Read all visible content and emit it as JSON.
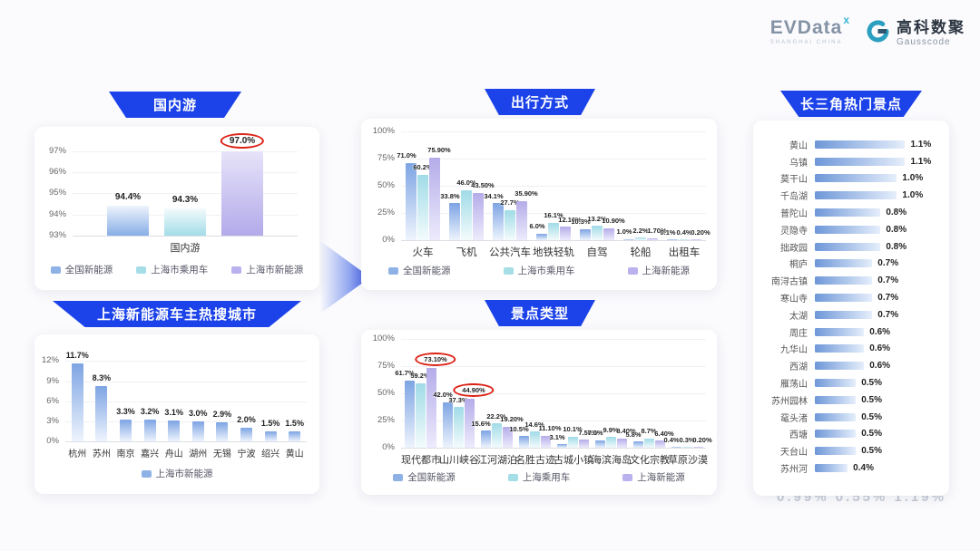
{
  "logo": {
    "evdata_text": "EVData",
    "evdata_sup": "x",
    "evdata_sub": "SHANGHAI CHINA",
    "gausscode_cn": "高科数聚",
    "gausscode_en": "Gausscode"
  },
  "watermark": "0.99%  0.55%  1.19%",
  "colors": {
    "banner_blue": "#1c42e9",
    "highlight_circle_red": "#dd2317",
    "series_legend": [
      "#8fb2e6",
      "#a6dee8",
      "#bab2ee"
    ],
    "hbar_blue": "#6e97d8"
  },
  "chart_data": [
    {
      "id": "domestic_travel",
      "type": "bar",
      "title": "国内游",
      "categories": [
        "国内游"
      ],
      "series": [
        {
          "name": "全国新能源",
          "values": [
            94.4
          ],
          "labels": [
            "94.4%"
          ]
        },
        {
          "name": "上海市乘用车",
          "values": [
            94.3
          ],
          "labels": [
            "94.3%"
          ]
        },
        {
          "name": "上海市新能源",
          "values": [
            97.0
          ],
          "labels": [
            "97.0%"
          ]
        }
      ],
      "yticks": [
        93,
        94,
        95,
        96,
        97
      ],
      "ylim": [
        93,
        97.45
      ],
      "highlight": [
        {
          "series": 2,
          "index": 0
        }
      ],
      "legend_position": "bottom",
      "grid": true
    },
    {
      "id": "hot_search_cities",
      "type": "bar",
      "title": "上海新能源车主热搜城市",
      "categories": [
        "杭州",
        "苏州",
        "南京",
        "嘉兴",
        "舟山",
        "湖州",
        "无锡",
        "宁波",
        "绍兴",
        "黄山"
      ],
      "series": [
        {
          "name": "上海市新能源",
          "values": [
            11.7,
            8.3,
            3.3,
            3.2,
            3.1,
            3.0,
            2.9,
            2.0,
            1.5,
            1.5
          ],
          "labels": [
            "11.7%",
            "8.3%",
            "3.3%",
            "3.2%",
            "3.1%",
            "3.0%",
            "2.9%",
            "2.0%",
            "1.5%",
            "1.5%"
          ]
        }
      ],
      "yticks": [
        0,
        3,
        6,
        9,
        12
      ],
      "ylim": [
        0,
        13
      ],
      "legend_position": "bottom",
      "grid": true
    },
    {
      "id": "travel_modes",
      "type": "bar",
      "title": "出行方式",
      "categories": [
        "火车",
        "飞机",
        "公共汽车",
        "地铁轻轨",
        "自驾",
        "轮船",
        "出租车"
      ],
      "series": [
        {
          "name": "全国新能源",
          "values": [
            71.0,
            33.8,
            34.1,
            6.0,
            10.3,
            1.0,
            0.1
          ],
          "labels": [
            "71.0%",
            "33.8%",
            "34.1%",
            "6.0%",
            "10.3%",
            "1.0%",
            "0.1%"
          ]
        },
        {
          "name": "上海市乘用车",
          "values": [
            60.2,
            46.0,
            27.7,
            16.1,
            13.2,
            2.2,
            0.4
          ],
          "labels": [
            "60.2%",
            "46.0%",
            "27.7%",
            "16.1%",
            "13.2%",
            "2.2%",
            "0.4%"
          ]
        },
        {
          "name": "上海新能源",
          "values": [
            75.9,
            43.5,
            35.9,
            12.1,
            10.9,
            1.7,
            0.2
          ],
          "labels": [
            "75.90%",
            "43.50%",
            "35.90%",
            "12.10%",
            "10.90%",
            "1.70%",
            "0.20%"
          ]
        }
      ],
      "yticks": [
        0,
        25,
        50,
        75,
        100
      ],
      "ylim": [
        0,
        100
      ],
      "legend_position": "bottom",
      "grid": true
    },
    {
      "id": "attraction_types",
      "type": "bar",
      "title": "景点类型",
      "categories": [
        "现代都市",
        "山川峡谷",
        "江河湖泊",
        "名胜古迹",
        "古城小镇",
        "海滨海岛",
        "文化宗教",
        "草原沙漠"
      ],
      "series": [
        {
          "name": "全国新能源",
          "values": [
            61.7,
            42.0,
            15.6,
            10.5,
            3.1,
            7.0,
            5.8,
            0.4
          ],
          "labels": [
            "61.7%",
            "42.0%",
            "15.6%",
            "10.5%",
            "3.1%",
            "7.0%",
            "5.8%",
            "0.4%"
          ]
        },
        {
          "name": "上海乘用车",
          "values": [
            59.2,
            37.3,
            22.2,
            14.6,
            10.1,
            9.9,
            8.7,
            0.3
          ],
          "labels": [
            "59.2%",
            "37.3%",
            "22.2%",
            "14.6%",
            "10.1%",
            "9.9%",
            "8.7%",
            "0.3%"
          ]
        },
        {
          "name": "上海新能源",
          "values": [
            73.1,
            44.9,
            19.2,
            11.1,
            7.5,
            8.4,
            6.4,
            0.2
          ],
          "labels": [
            "73.10%",
            "44.90%",
            "19.20%",
            "11.10%",
            "7.50%",
            "8.40%",
            "6.40%",
            "0.20%"
          ]
        }
      ],
      "yticks": [
        0,
        25,
        50,
        75,
        100
      ],
      "ylim": [
        0,
        100
      ],
      "highlight": [
        {
          "series": 2,
          "index": 0
        },
        {
          "series": 2,
          "index": 1
        }
      ],
      "legend_position": "bottom",
      "grid": true
    },
    {
      "id": "yangtze_delta_hot_attractions",
      "type": "bar-horizontal",
      "title": "长三角热门景点",
      "categories": [
        "黄山",
        "乌镇",
        "莫干山",
        "千岛湖",
        "普陀山",
        "灵隐寺",
        "拙政园",
        "桐庐",
        "南浔古镇",
        "寒山寺",
        "太湖",
        "周庄",
        "九华山",
        "西湖",
        "雁荡山",
        "苏州园林",
        "鼋头渚",
        "西塘",
        "天台山",
        "苏州河"
      ],
      "values": [
        1.1,
        1.1,
        1.0,
        1.0,
        0.8,
        0.8,
        0.8,
        0.7,
        0.7,
        0.7,
        0.7,
        0.6,
        0.6,
        0.6,
        0.5,
        0.5,
        0.5,
        0.5,
        0.5,
        0.4
      ],
      "labels": [
        "1.1%",
        "1.1%",
        "1.0%",
        "1.0%",
        "0.8%",
        "0.8%",
        "0.8%",
        "0.7%",
        "0.7%",
        "0.7%",
        "0.7%",
        "0.6%",
        "0.6%",
        "0.6%",
        "0.5%",
        "0.5%",
        "0.5%",
        "0.5%",
        "0.5%",
        "0.4%"
      ],
      "xlim": [
        0,
        1.15
      ],
      "legend_position": "none"
    }
  ]
}
